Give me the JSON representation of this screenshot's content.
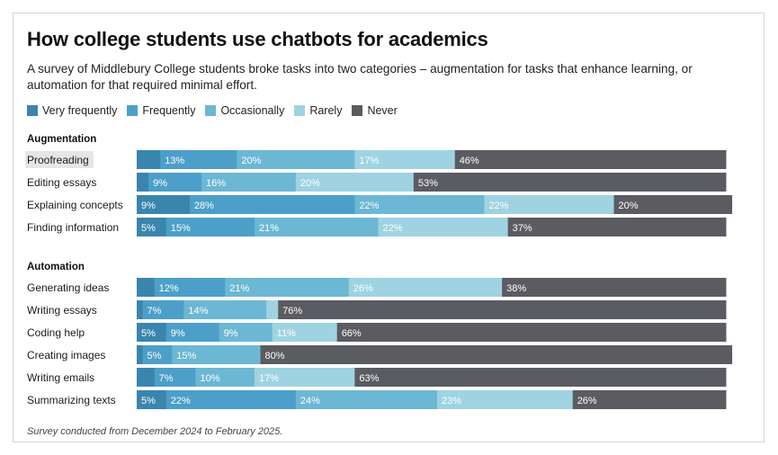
{
  "title": "How college students use chatbots for academics",
  "subtitle": "A survey of Middlebury College students broke tasks into two categories – augmentation for tasks that enhance learning, or automation for that required minimal effort.",
  "footnote": "Survey conducted from December 2024 to February 2025.",
  "colors": {
    "very_frequently": "#3a85ad",
    "frequently": "#4c9fc9",
    "occasionally": "#6cb7d4",
    "rarely": "#9fd3e2",
    "never": "#5b5c62"
  },
  "chart_data": {
    "type": "bar",
    "orientation": "horizontal",
    "stacked": true,
    "percent_of_total": true,
    "series_names": [
      "Very frequently",
      "Frequently",
      "Occasionally",
      "Rarely",
      "Never"
    ],
    "groups": [
      {
        "name": "Augmentation",
        "rows": [
          {
            "label": "Proofreading",
            "highlighted": true,
            "values": [
              4,
              13,
              20,
              17,
              46
            ]
          },
          {
            "label": "Editing essays",
            "values": [
              2,
              9,
              16,
              20,
              53
            ]
          },
          {
            "label": "Explaining concepts",
            "values": [
              9,
              28,
              22,
              22,
              20
            ]
          },
          {
            "label": "Finding information",
            "values": [
              5,
              15,
              21,
              22,
              37
            ]
          }
        ]
      },
      {
        "name": "Automation",
        "rows": [
          {
            "label": "Generating ideas",
            "values": [
              3,
              12,
              21,
              26,
              38
            ]
          },
          {
            "label": "Writing essays",
            "values": [
              1,
              7,
              14,
              2,
              76
            ]
          },
          {
            "label": "Coding help",
            "values": [
              5,
              9,
              9,
              11,
              66
            ]
          },
          {
            "label": "Creating images",
            "values": [
              1,
              5,
              15,
              0,
              80
            ]
          },
          {
            "label": "Writing emails",
            "values": [
              3,
              7,
              10,
              17,
              63
            ]
          },
          {
            "label": "Summarizing texts",
            "values": [
              5,
              22,
              24,
              23,
              26
            ]
          }
        ]
      }
    ],
    "printed_labels": [
      [
        null,
        "13%",
        "20%",
        "17%",
        "46%"
      ],
      [
        null,
        "9%",
        "16%",
        "20%",
        "53%"
      ],
      [
        "9%",
        "28%",
        "22%",
        "22%",
        "20%"
      ],
      [
        "5%",
        "15%",
        "21%",
        "22%",
        "37%"
      ],
      [
        null,
        "12%",
        "21%",
        "26%",
        "38%"
      ],
      [
        null,
        "7%",
        "14%",
        null,
        "76%"
      ],
      [
        "5%",
        "9%",
        "9%",
        "11%",
        "66%"
      ],
      [
        null,
        "5%",
        "15%",
        null,
        "80%"
      ],
      [
        null,
        "7%",
        "10%",
        "17%",
        "63%"
      ],
      [
        "5%",
        "22%",
        "24%",
        "23%",
        "26%"
      ]
    ]
  }
}
